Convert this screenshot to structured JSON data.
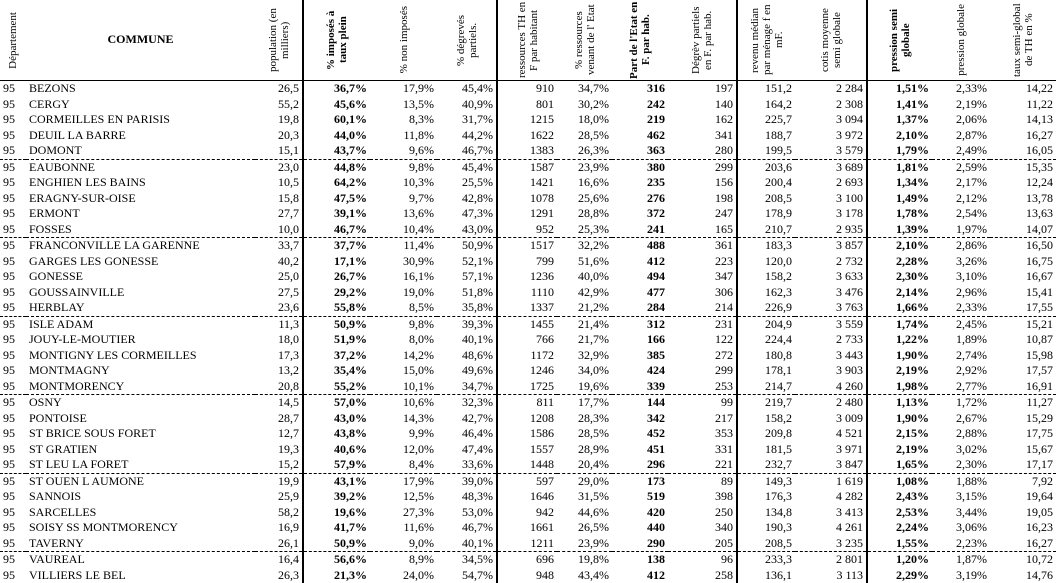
{
  "table": {
    "columns": [
      "Département",
      "COMMUNE",
      "population (en milliers)",
      "% imposés à taux plein",
      "% non imposés",
      "% dégrevés partiels.",
      "ressources TH en F par habitant",
      "% ressources venant de l' Etat",
      "Part de l'Etat en F. par hab.",
      "Dégrèv partiels en F. par hab.",
      "revenu médian par ménage f en mF.",
      "cotis moyenne semi globale",
      "pression semi globale",
      "pression globale",
      "taux semi-global de TH en %"
    ],
    "rows": [
      [
        "95",
        "BEZONS",
        "26,5",
        "36,7%",
        "17,9%",
        "45,4%",
        "910",
        "34,7%",
        "316",
        "197",
        "151,2",
        "2 284",
        "1,51%",
        "2,33%",
        "14,22"
      ],
      [
        "95",
        "CERGY",
        "55,2",
        "45,6%",
        "13,5%",
        "40,9%",
        "801",
        "30,2%",
        "242",
        "140",
        "164,2",
        "2 308",
        "1,41%",
        "2,19%",
        "11,22"
      ],
      [
        "95",
        "CORMEILLES EN PARISIS",
        "19,8",
        "60,1%",
        "8,3%",
        "31,7%",
        "1215",
        "18,0%",
        "219",
        "162",
        "225,7",
        "3 094",
        "1,37%",
        "2,06%",
        "14,13"
      ],
      [
        "95",
        "DEUIL LA BARRE",
        "20,3",
        "44,0%",
        "11,8%",
        "44,2%",
        "1622",
        "28,5%",
        "462",
        "341",
        "188,7",
        "3 972",
        "2,10%",
        "2,87%",
        "16,27"
      ],
      [
        "95",
        "DOMONT",
        "15,1",
        "43,7%",
        "9,6%",
        "46,7%",
        "1383",
        "26,3%",
        "363",
        "280",
        "199,5",
        "3 579",
        "1,79%",
        "2,49%",
        "16,05"
      ],
      [
        "95",
        "EAUBONNE",
        "23,0",
        "44,8%",
        "9,8%",
        "45,4%",
        "1587",
        "23,9%",
        "380",
        "299",
        "203,6",
        "3 689",
        "1,81%",
        "2,59%",
        "15,35"
      ],
      [
        "95",
        "ENGHIEN LES BAINS",
        "10,5",
        "64,2%",
        "10,3%",
        "25,5%",
        "1421",
        "16,6%",
        "235",
        "156",
        "200,4",
        "2 693",
        "1,34%",
        "2,17%",
        "12,24"
      ],
      [
        "95",
        "ERAGNY-SUR-OISE",
        "15,8",
        "47,5%",
        "9,7%",
        "42,8%",
        "1078",
        "25,6%",
        "276",
        "198",
        "208,5",
        "3 100",
        "1,49%",
        "2,12%",
        "13,78"
      ],
      [
        "95",
        "ERMONT",
        "27,7",
        "39,1%",
        "13,6%",
        "47,3%",
        "1291",
        "28,8%",
        "372",
        "247",
        "178,9",
        "3 178",
        "1,78%",
        "2,54%",
        "13,63"
      ],
      [
        "95",
        "FOSSES",
        "10,0",
        "46,7%",
        "10,4%",
        "43,0%",
        "952",
        "25,3%",
        "241",
        "165",
        "210,7",
        "2 935",
        "1,39%",
        "1,97%",
        "14,07"
      ],
      [
        "95",
        "FRANCONVILLE LA GARENNE",
        "33,7",
        "37,7%",
        "11,4%",
        "50,9%",
        "1517",
        "32,2%",
        "488",
        "361",
        "183,3",
        "3 857",
        "2,10%",
        "2,86%",
        "16,50"
      ],
      [
        "95",
        "GARGES LES GONESSE",
        "40,2",
        "17,1%",
        "30,9%",
        "52,1%",
        "799",
        "51,6%",
        "412",
        "223",
        "120,0",
        "2 732",
        "2,28%",
        "3,26%",
        "16,75"
      ],
      [
        "95",
        "GONESSE",
        "25,0",
        "26,7%",
        "16,1%",
        "57,1%",
        "1236",
        "40,0%",
        "494",
        "347",
        "158,2",
        "3 633",
        "2,30%",
        "3,10%",
        "16,67"
      ],
      [
        "95",
        "GOUSSAINVILLE",
        "27,5",
        "29,2%",
        "19,0%",
        "51,8%",
        "1110",
        "42,9%",
        "477",
        "306",
        "162,3",
        "3 476",
        "2,14%",
        "2,96%",
        "15,41"
      ],
      [
        "95",
        "HERBLAY",
        "23,6",
        "55,8%",
        "8,5%",
        "35,8%",
        "1337",
        "21,2%",
        "284",
        "214",
        "226,9",
        "3 763",
        "1,66%",
        "2,33%",
        "17,55"
      ],
      [
        "95",
        "ISLE ADAM",
        "11,3",
        "50,9%",
        "9,8%",
        "39,3%",
        "1455",
        "21,4%",
        "312",
        "231",
        "204,9",
        "3 559",
        "1,74%",
        "2,45%",
        "15,21"
      ],
      [
        "95",
        "JOUY-LE-MOUTIER",
        "18,0",
        "51,9%",
        "8,0%",
        "40,1%",
        "766",
        "21,7%",
        "166",
        "122",
        "224,4",
        "2 733",
        "1,22%",
        "1,89%",
        "10,87"
      ],
      [
        "95",
        "MONTIGNY LES CORMEILLES",
        "17,3",
        "37,2%",
        "14,2%",
        "48,6%",
        "1172",
        "32,9%",
        "385",
        "272",
        "180,8",
        "3 443",
        "1,90%",
        "2,74%",
        "15,98"
      ],
      [
        "95",
        "MONTMAGNY",
        "13,2",
        "35,4%",
        "15,0%",
        "49,6%",
        "1246",
        "34,0%",
        "424",
        "299",
        "178,1",
        "3 903",
        "2,19%",
        "2,92%",
        "17,57"
      ],
      [
        "95",
        "MONTMORENCY",
        "20,8",
        "55,2%",
        "10,1%",
        "34,7%",
        "1725",
        "19,6%",
        "339",
        "253",
        "214,7",
        "4 260",
        "1,98%",
        "2,77%",
        "16,91"
      ],
      [
        "95",
        "OSNY",
        "14,5",
        "57,0%",
        "10,6%",
        "32,3%",
        "811",
        "17,7%",
        "144",
        "99",
        "219,7",
        "2 480",
        "1,13%",
        "1,72%",
        "11,27"
      ],
      [
        "95",
        "PONTOISE",
        "28,7",
        "43,0%",
        "14,3%",
        "42,7%",
        "1208",
        "28,3%",
        "342",
        "217",
        "158,2",
        "3 009",
        "1,90%",
        "2,67%",
        "15,29"
      ],
      [
        "95",
        "ST BRICE SOUS FORET",
        "12,7",
        "43,8%",
        "9,9%",
        "46,4%",
        "1586",
        "28,5%",
        "452",
        "353",
        "209,8",
        "4 521",
        "2,15%",
        "2,88%",
        "17,75"
      ],
      [
        "95",
        "ST GRATIEN",
        "19,3",
        "40,6%",
        "12,0%",
        "47,4%",
        "1557",
        "28,9%",
        "451",
        "331",
        "181,5",
        "3 971",
        "2,19%",
        "3,02%",
        "15,67"
      ],
      [
        "95",
        "ST LEU LA FORET",
        "15,2",
        "57,9%",
        "8,4%",
        "33,6%",
        "1448",
        "20,4%",
        "296",
        "221",
        "232,7",
        "3 847",
        "1,65%",
        "2,30%",
        "17,17"
      ],
      [
        "95",
        "ST OUEN L AUMONE",
        "19,9",
        "43,1%",
        "17,9%",
        "39,0%",
        "597",
        "29,0%",
        "173",
        "89",
        "149,3",
        "1 619",
        "1,08%",
        "1,88%",
        "7,92"
      ],
      [
        "95",
        "SANNOIS",
        "25,9",
        "39,2%",
        "12,5%",
        "48,3%",
        "1646",
        "31,5%",
        "519",
        "398",
        "176,3",
        "4 282",
        "2,43%",
        "3,15%",
        "19,64"
      ],
      [
        "95",
        "SARCELLES",
        "58,2",
        "19,6%",
        "27,3%",
        "53,0%",
        "942",
        "44,6%",
        "420",
        "250",
        "134,8",
        "3 413",
        "2,53%",
        "3,44%",
        "19,05"
      ],
      [
        "95",
        "SOISY SS MONTMORENCY",
        "16,9",
        "41,7%",
        "11,6%",
        "46,7%",
        "1661",
        "26,5%",
        "440",
        "340",
        "190,3",
        "4 261",
        "2,24%",
        "3,06%",
        "16,23"
      ],
      [
        "95",
        "TAVERNY",
        "26,1",
        "50,9%",
        "9,0%",
        "40,1%",
        "1211",
        "23,9%",
        "290",
        "205",
        "208,5",
        "3 235",
        "1,55%",
        "2,23%",
        "16,27"
      ],
      [
        "95",
        "VAUREAL",
        "16,4",
        "56,6%",
        "8,9%",
        "34,5%",
        "696",
        "19,8%",
        "138",
        "96",
        "233,3",
        "2 801",
        "1,20%",
        "1,87%",
        "10,72"
      ],
      [
        "95",
        "VILLIERS LE BEL",
        "26,3",
        "21,3%",
        "24,0%",
        "54,7%",
        "948",
        "43,4%",
        "412",
        "258",
        "136,1",
        "3 113",
        "2,29%",
        "3,19%",
        "14,76"
      ]
    ]
  }
}
